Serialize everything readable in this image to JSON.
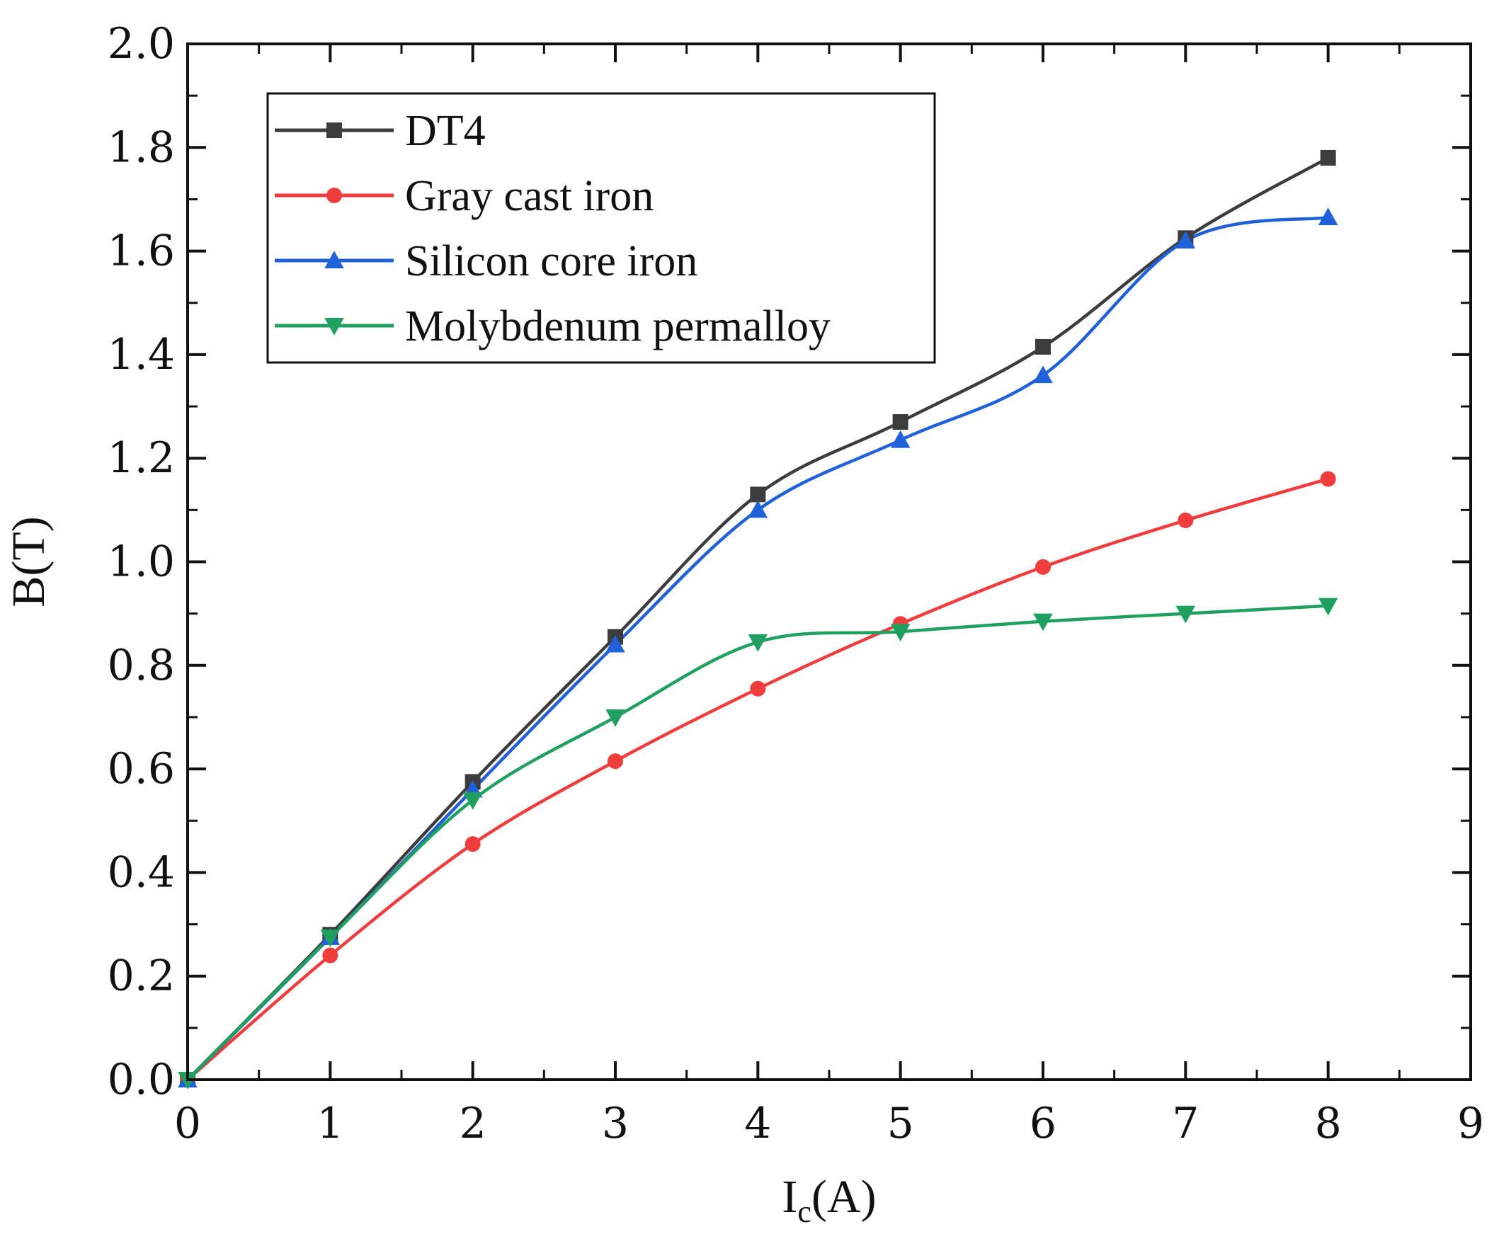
{
  "chart_data": {
    "type": "line",
    "xlabel": "I",
    "xlabel_subscript": "c",
    "xlabel_unit": "(A)",
    "ylabel": "B(T)",
    "xlim": [
      0,
      9
    ],
    "ylim": [
      0.0,
      2.0
    ],
    "x_ticks": [
      0,
      1,
      2,
      3,
      4,
      5,
      6,
      7,
      8,
      9
    ],
    "x_tick_labels": [
      "0",
      "1",
      "2",
      "3",
      "4",
      "5",
      "6",
      "7",
      "8",
      "9"
    ],
    "y_ticks": [
      0.0,
      0.2,
      0.4,
      0.6,
      0.8,
      1.0,
      1.2,
      1.4,
      1.6,
      1.8,
      2.0
    ],
    "y_tick_labels": [
      "0.0",
      "0.2",
      "0.4",
      "0.6",
      "0.8",
      "1.0",
      "1.2",
      "1.4",
      "1.6",
      "1.8",
      "2.0"
    ],
    "grid": false,
    "legend_position": "top-left",
    "x": [
      0,
      1,
      2,
      3,
      4,
      5,
      6,
      7,
      8
    ],
    "series": [
      {
        "name": "DT4",
        "color": "#3c3c3c",
        "marker": "square",
        "values": [
          0.0,
          0.28,
          0.575,
          0.855,
          1.13,
          1.27,
          1.415,
          1.625,
          1.78
        ]
      },
      {
        "name": "Gray cast iron",
        "color": "#f03c3c",
        "marker": "circle",
        "values": [
          0.0,
          0.24,
          0.455,
          0.615,
          0.755,
          0.88,
          0.99,
          1.08,
          1.16
        ]
      },
      {
        "name": "Silicon core iron",
        "color": "#2060d8",
        "marker": "triangle-up",
        "values": [
          0.0,
          0.275,
          0.56,
          0.84,
          1.1,
          1.235,
          1.36,
          1.62,
          1.665
        ]
      },
      {
        "name": "Molybdenum permalloy",
        "color": "#20a060",
        "marker": "triangle-down",
        "values": [
          0.0,
          0.275,
          0.54,
          0.7,
          0.845,
          0.865,
          0.885,
          0.9,
          0.915
        ]
      }
    ]
  }
}
